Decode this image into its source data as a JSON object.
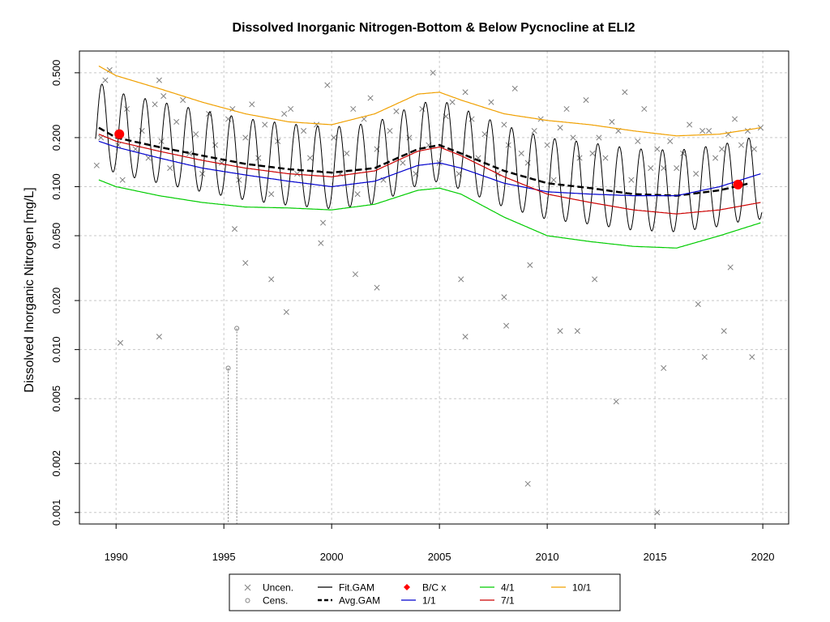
{
  "chart_data": {
    "type": "line",
    "title": "Dissolved Inorganic Nitrogen-Bottom & Below Pycnocline at ELI2",
    "xlabel": "",
    "ylabel": "Dissolved Inorganic Nitrogen [mg/L]",
    "y_scale": "log",
    "xlim": [
      1988.3,
      2021.2
    ],
    "ylim": [
      0.00085,
      0.68
    ],
    "x_ticks": [
      "1990",
      "1995",
      "2000",
      "2005",
      "2010",
      "2015",
      "2020"
    ],
    "y_ticks": [
      "0.001",
      "0.002",
      "0.005",
      "0.010",
      "0.020",
      "0.050",
      "0.100",
      "0.200",
      "0.500"
    ],
    "grid": true,
    "legend_position": "bottom-center",
    "legend": [
      {
        "label": "Uncen.",
        "symbol": "x",
        "color": "#808080"
      },
      {
        "label": "Cens.",
        "symbol": "circle",
        "color": "#808080"
      },
      {
        "label": "Fit.GAM",
        "symbol": "line",
        "color": "#000000"
      },
      {
        "label": "Avg.GAM",
        "symbol": "dashed-line",
        "color": "#000000"
      },
      {
        "label": "B/C x",
        "symbol": "diamond",
        "color": "#ff0000"
      },
      {
        "label": "1/1",
        "symbol": "line",
        "color": "#0000cd"
      },
      {
        "label": "4/1",
        "symbol": "line",
        "color": "#00cc00"
      },
      {
        "label": "7/1",
        "symbol": "line",
        "color": "#cc0000"
      },
      {
        "label": "10/1",
        "symbol": "line",
        "color": "#f0a000"
      }
    ],
    "series": [
      {
        "name": "Avg.GAM",
        "color": "#000000",
        "style": "dashed",
        "x": [
          1989.2,
          1990,
          1992,
          1994,
          1996,
          1998,
          2000,
          2002,
          2004,
          2005,
          2006,
          2008,
          2010,
          2012,
          2014,
          2016,
          2018,
          2019.4
        ],
        "y": [
          0.23,
          0.2,
          0.175,
          0.155,
          0.138,
          0.128,
          0.122,
          0.13,
          0.17,
          0.18,
          0.16,
          0.125,
          0.105,
          0.098,
          0.09,
          0.088,
          0.095,
          0.105
        ]
      },
      {
        "name": "1/1",
        "color": "#0000cd",
        "x": [
          1989.2,
          1990,
          1992,
          1994,
          1996,
          1998,
          2000,
          2002,
          2004,
          2005,
          2006,
          2008,
          2010,
          2012,
          2014,
          2016,
          2018,
          2019.9
        ],
        "y": [
          0.19,
          0.175,
          0.15,
          0.13,
          0.118,
          0.108,
          0.1,
          0.108,
          0.135,
          0.14,
          0.13,
          0.105,
          0.093,
          0.09,
          0.088,
          0.088,
          0.1,
          0.12
        ]
      },
      {
        "name": "4/1",
        "color": "#00cc00",
        "x": [
          1989.2,
          1990,
          1992,
          1994,
          1996,
          1998,
          2000,
          2002,
          2004,
          2005,
          2006,
          2008,
          2010,
          2012,
          2014,
          2016,
          2018,
          2019.9
        ],
        "y": [
          0.11,
          0.1,
          0.088,
          0.08,
          0.075,
          0.074,
          0.072,
          0.078,
          0.095,
          0.098,
          0.09,
          0.065,
          0.05,
          0.046,
          0.043,
          0.042,
          0.05,
          0.06
        ]
      },
      {
        "name": "7/1",
        "color": "#cc0000",
        "x": [
          1989.2,
          1990,
          1992,
          1994,
          1996,
          1998,
          2000,
          2002,
          2004,
          2005,
          2006,
          2008,
          2010,
          2012,
          2014,
          2016,
          2018,
          2019.9
        ],
        "y": [
          0.21,
          0.19,
          0.165,
          0.145,
          0.13,
          0.12,
          0.115,
          0.125,
          0.165,
          0.175,
          0.155,
          0.115,
          0.09,
          0.08,
          0.072,
          0.068,
          0.072,
          0.08
        ]
      },
      {
        "name": "10/1",
        "color": "#f0a000",
        "x": [
          1989.2,
          1990,
          1992,
          1994,
          1996,
          1998,
          2000,
          2002,
          2004,
          2005,
          2006,
          2008,
          2010,
          2012,
          2014,
          2016,
          2018,
          2019.9
        ],
        "y": [
          0.55,
          0.48,
          0.4,
          0.33,
          0.28,
          0.25,
          0.24,
          0.28,
          0.37,
          0.38,
          0.34,
          0.28,
          0.255,
          0.24,
          0.22,
          0.205,
          0.21,
          0.23
        ]
      }
    ],
    "fit_gam": {
      "name": "Fit.GAM",
      "color": "#000000",
      "x_start": 1989.05,
      "x_end": 2019.95,
      "peak_month_fraction": 0.35,
      "peak_ratio": 1.9,
      "trough_ratio": 0.6
    },
    "bc_points": {
      "name": "B/C x",
      "color": "#ff0000",
      "x": [
        1990.15,
        2018.85
      ],
      "y": [
        0.21,
        0.103
      ]
    },
    "uncensored_points": {
      "name": "Uncen.",
      "color": "#808080",
      "x": [
        1989.1,
        1989.3,
        1989.5,
        1989.7,
        1990.1,
        1990.3,
        1990.5,
        1990.9,
        1991.2,
        1991.5,
        1991.8,
        1992.0,
        1992.1,
        1992.2,
        1992.5,
        1992.8,
        1993.1,
        1993.4,
        1993.7,
        1994.0,
        1994.3,
        1994.6,
        1994.9,
        1995.2,
        1995.4,
        1995.7,
        1996.0,
        1996.3,
        1996.6,
        1996.9,
        1997.2,
        1997.5,
        1997.8,
        1998.1,
        1998.4,
        1998.7,
        1999.0,
        1999.3,
        1999.6,
        1999.8,
        2000.1,
        2000.4,
        2000.7,
        2001.0,
        2001.2,
        2001.5,
        2001.8,
        2002.1,
        2002.4,
        2002.7,
        2003.0,
        2003.3,
        2003.6,
        2003.9,
        2004.2,
        2004.5,
        2004.7,
        2005.0,
        2005.3,
        2005.6,
        2005.9,
        2006.2,
        2006.5,
        2006.8,
        2007.1,
        2007.4,
        2007.7,
        2008.0,
        2008.2,
        2008.5,
        2008.8,
        2009.1,
        2009.4,
        2009.7,
        2010.0,
        2010.3,
        2010.6,
        2010.9,
        2011.2,
        2011.5,
        2011.8,
        2012.1,
        2012.4,
        2012.7,
        2013.0,
        2013.3,
        2013.6,
        2013.9,
        2014.2,
        2014.5,
        2014.8,
        2015.1,
        2015.4,
        2015.7,
        2016.0,
        2016.3,
        2016.6,
        2016.9,
        2017.2,
        2017.5,
        2017.8,
        2018.1,
        2018.4,
        2018.7,
        2019.0,
        2019.3,
        2019.6,
        2019.9,
        1990.2,
        1992.0,
        1997.2,
        1997.9,
        2001.1,
        2002.1,
        2006.2,
        2008.0,
        2009.1,
        2009.2,
        2010.6,
        2011.4,
        2013.2,
        2015.1,
        2015.4,
        2017.3,
        2018.2,
        2018.5,
        2019.5,
        1999.5,
        1996.0,
        2008.1,
        2012.2,
        2017.0,
        1995.5,
        2006.0
      ],
      "y": [
        0.135,
        0.2,
        0.45,
        0.52,
        0.18,
        0.11,
        0.3,
        0.17,
        0.22,
        0.15,
        0.32,
        0.45,
        0.19,
        0.36,
        0.13,
        0.25,
        0.34,
        0.16,
        0.21,
        0.12,
        0.28,
        0.18,
        0.14,
        0.26,
        0.3,
        0.11,
        0.2,
        0.32,
        0.15,
        0.24,
        0.09,
        0.19,
        0.28,
        0.3,
        0.12,
        0.22,
        0.15,
        0.24,
        0.06,
        0.42,
        0.2,
        0.12,
        0.16,
        0.3,
        0.09,
        0.26,
        0.35,
        0.17,
        0.11,
        0.22,
        0.29,
        0.14,
        0.2,
        0.12,
        0.3,
        0.18,
        0.5,
        0.14,
        0.27,
        0.33,
        0.12,
        0.38,
        0.26,
        0.15,
        0.21,
        0.33,
        0.12,
        0.24,
        0.18,
        0.4,
        0.16,
        0.14,
        0.22,
        0.26,
        0.18,
        0.11,
        0.23,
        0.3,
        0.2,
        0.15,
        0.34,
        0.16,
        0.2,
        0.15,
        0.25,
        0.22,
        0.38,
        0.11,
        0.19,
        0.3,
        0.13,
        0.17,
        0.13,
        0.19,
        0.13,
        0.16,
        0.24,
        0.12,
        0.22,
        0.22,
        0.15,
        0.17,
        0.21,
        0.26,
        0.18,
        0.22,
        0.17,
        0.23,
        0.011,
        0.012,
        0.027,
        0.017,
        0.029,
        0.024,
        0.012,
        0.021,
        0.0015,
        0.033,
        0.013,
        0.013,
        0.0048,
        0.001,
        0.0077,
        0.009,
        0.013,
        0.032,
        0.009,
        0.045,
        0.034,
        0.014,
        0.027,
        0.019,
        0.055,
        0.027
      ]
    },
    "censored_points": {
      "name": "Cens.",
      "color": "#808080",
      "x": [
        1995.2,
        1995.6
      ],
      "y": [
        0.0077,
        0.0135
      ]
    }
  }
}
